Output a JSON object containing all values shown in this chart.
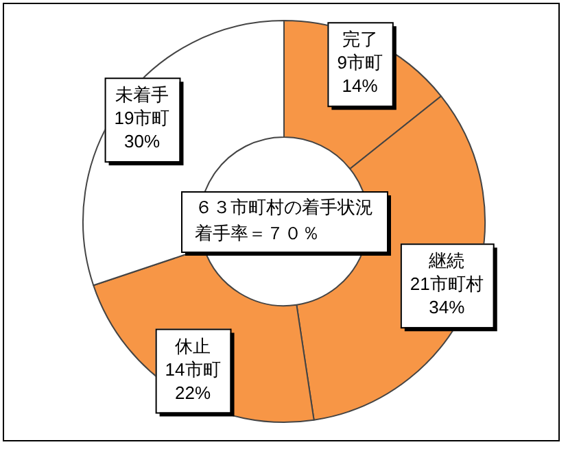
{
  "chart_data": {
    "type": "donut",
    "title": "６３市町村の着手状況",
    "subtitle": "着手率＝７０％",
    "categories": [
      "完了",
      "継続",
      "休止",
      "未着手"
    ],
    "values": [
      9,
      21,
      14,
      19
    ],
    "value_labels": [
      "9市町\n14%",
      "21市町村\n34%",
      "14市町\n22%",
      "19市町\n30%"
    ],
    "colors": [
      "#f79646",
      "#f79646",
      "#f79646",
      "#ffffff"
    ],
    "legend": false
  }
}
